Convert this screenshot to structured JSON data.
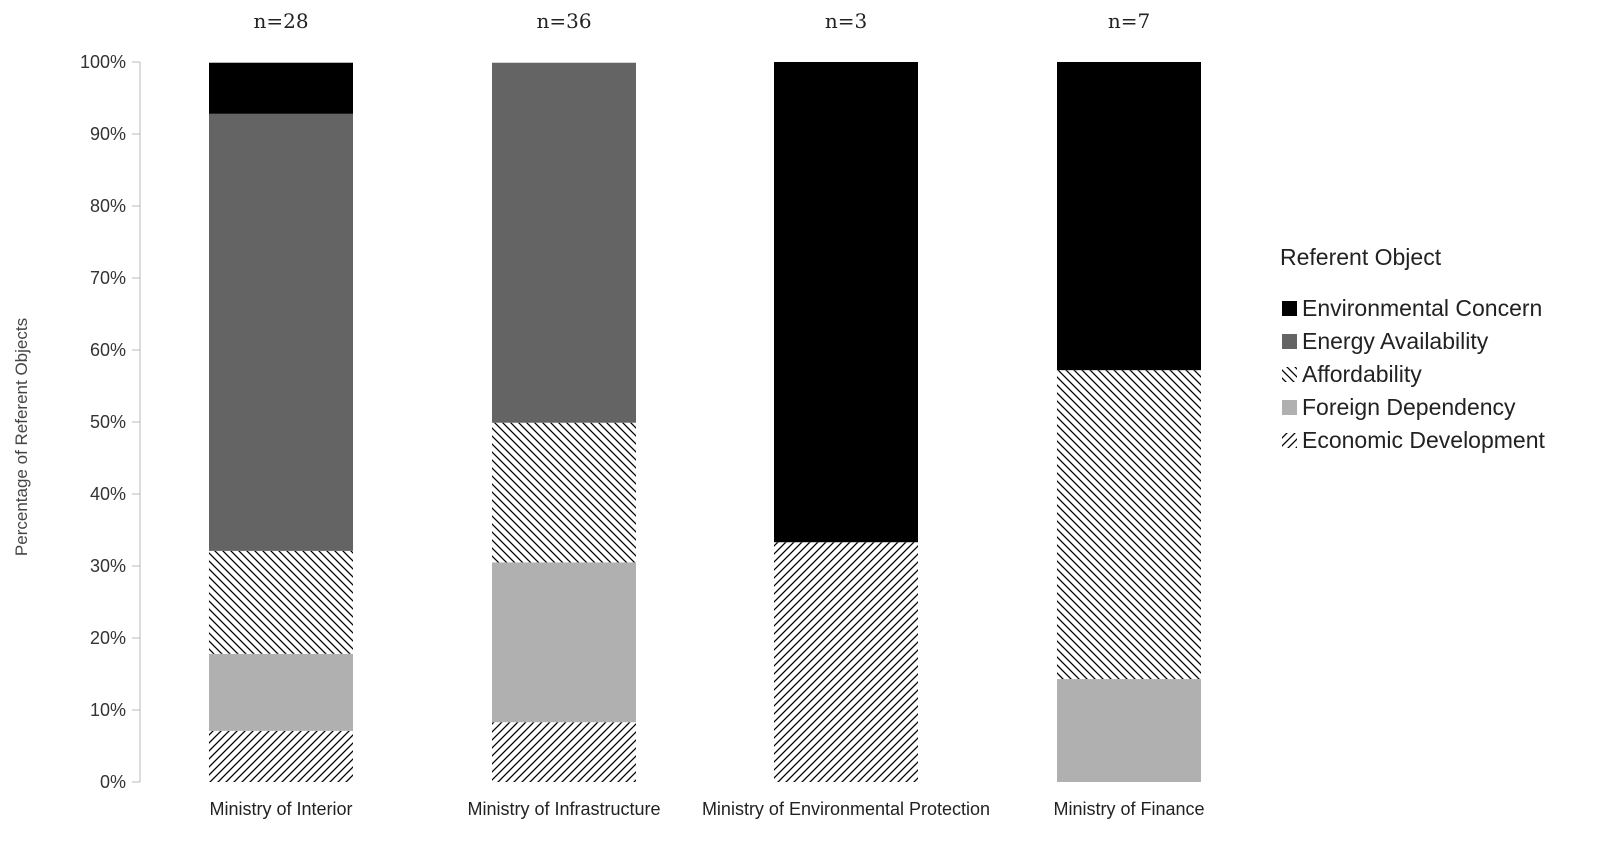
{
  "chart_data": {
    "type": "bar",
    "stacked": true,
    "title": "",
    "xlabel": "",
    "ylabel": "Percentage of Referent Objects",
    "ylim": [
      0,
      100
    ],
    "yticks": [
      "0%",
      "10%",
      "20%",
      "30%",
      "40%",
      "50%",
      "60%",
      "70%",
      "80%",
      "90%",
      "100%"
    ],
    "categories": [
      "Ministry of Interior",
      "Ministry of Infrastructure",
      "Ministry of Environmental Protection",
      "Ministry of Finance"
    ],
    "sample_sizes": [
      "n=28",
      "n=36",
      "n=3",
      "n=7"
    ],
    "legend_title": "Referent Object",
    "legend_position": "right",
    "grid": false,
    "series": [
      {
        "name": "Economic Development",
        "fill": "hatch-forward",
        "color": "#000000",
        "values": [
          7.1,
          8.3,
          33.3,
          0
        ]
      },
      {
        "name": "Foreign Dependency",
        "fill": "solid",
        "color": "#b0b0b0",
        "values": [
          10.7,
          22.2,
          0,
          14.3
        ]
      },
      {
        "name": "Affordability",
        "fill": "hatch-backward",
        "color": "#000000",
        "values": [
          14.3,
          19.4,
          0,
          42.9
        ]
      },
      {
        "name": "Energy Availability",
        "fill": "solid",
        "color": "#646464",
        "values": [
          60.7,
          50.0,
          0,
          0
        ]
      },
      {
        "name": "Environmental Concern",
        "fill": "solid",
        "color": "#000000",
        "values": [
          7.1,
          0,
          66.7,
          42.8
        ]
      }
    ],
    "legend_order": [
      "Environmental Concern",
      "Energy Availability",
      "Affordability",
      "Foreign Dependency",
      "Economic Development"
    ]
  }
}
